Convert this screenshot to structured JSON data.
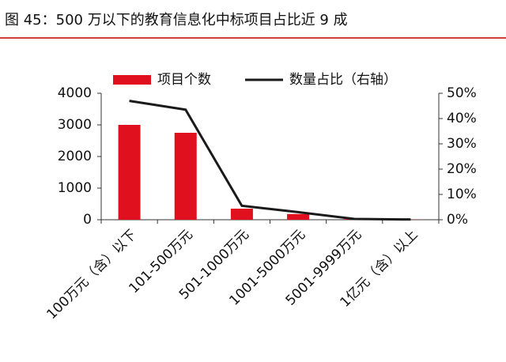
{
  "chart_data": {
    "type": "bar",
    "title": "图 45：500 万以下的教育信息化中标项目占比近 9 成",
    "categories": [
      "100万元（含）以下",
      "101-500万元",
      "501-1000万元",
      "1001-5000万元",
      "5001-9999万元",
      "1亿元（含）以上"
    ],
    "series": [
      {
        "name": "项目个数",
        "type": "bar",
        "color": "#e0101e",
        "values": [
          3000,
          2750,
          350,
          180,
          20,
          5
        ]
      },
      {
        "name": "数量占比（右轴）",
        "type": "line",
        "axis": "y2",
        "color": "#1a1a1a",
        "values": [
          47,
          43.5,
          5.5,
          3,
          0.3,
          0.1
        ]
      }
    ],
    "ylim": [
      0,
      4000
    ],
    "yticks": [
      0,
      1000,
      2000,
      3000,
      4000
    ],
    "y2lim": [
      0,
      50
    ],
    "y2ticks": [
      {
        "value": 0,
        "label": "0%"
      },
      {
        "value": 10,
        "label": "10%"
      },
      {
        "value": 20,
        "label": "20%"
      },
      {
        "value": 30,
        "label": "30%"
      },
      {
        "value": 40,
        "label": "40%"
      },
      {
        "value": 50,
        "label": "50%"
      }
    ],
    "grid": false
  }
}
